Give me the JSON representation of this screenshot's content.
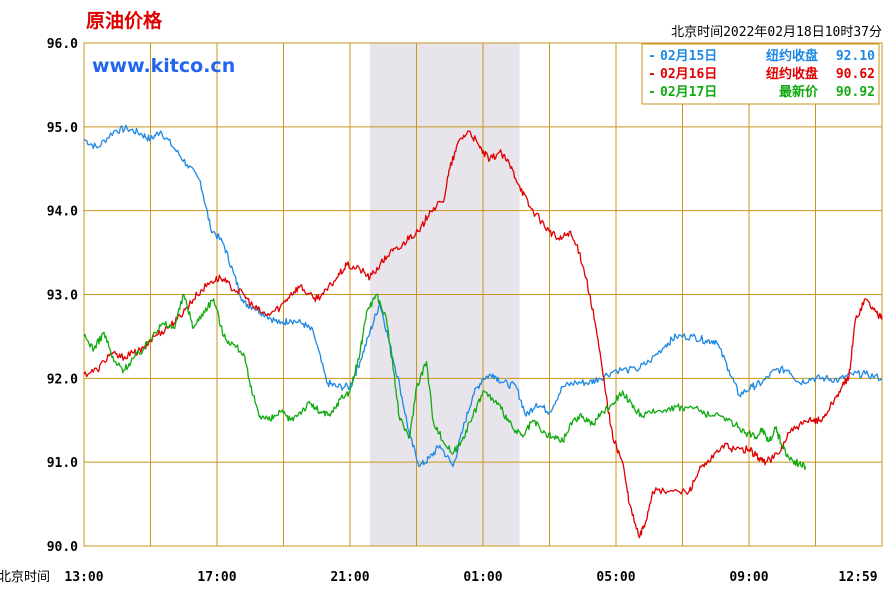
{
  "chart_data": {
    "type": "line",
    "title": "原油价格",
    "watermark": "www.kitco.cn",
    "timestamp": "北京时间2022年02月18日10时37分",
    "x_axis_prefix": "北京时间",
    "x_ticks": [
      "13:00",
      "17:00",
      "21:00",
      "01:00",
      "05:00",
      "09:00",
      "12:59"
    ],
    "y_ticks": [
      "96.0",
      "95.0",
      "94.0",
      "93.0",
      "92.0",
      "91.0",
      "90.0"
    ],
    "ylim": [
      90.0,
      96.0
    ],
    "xlim_hours": [
      0,
      24
    ],
    "shaded_region_hours": [
      8.6,
      13.1
    ],
    "grid": true,
    "legend_position": "top-right",
    "colors": {
      "grid": "#c8961e",
      "shade": "#e8e4ec",
      "title": "#e00000",
      "watermark": "#2266ee"
    },
    "series": [
      {
        "name": "02月15日",
        "legend_label": "纽约收盘",
        "legend_value": "92.10",
        "color": "#1e88e5",
        "points": [
          [
            0,
            94.85
          ],
          [
            0.4,
            94.75
          ],
          [
            0.9,
            94.95
          ],
          [
            1.3,
            94.98
          ],
          [
            1.7,
            94.92
          ],
          [
            2.0,
            94.85
          ],
          [
            2.3,
            94.95
          ],
          [
            2.7,
            94.75
          ],
          [
            3.1,
            94.55
          ],
          [
            3.5,
            94.35
          ],
          [
            3.8,
            93.8
          ],
          [
            4.2,
            93.6
          ],
          [
            4.5,
            93.25
          ],
          [
            4.8,
            92.9
          ],
          [
            5.1,
            92.85
          ],
          [
            5.5,
            92.75
          ],
          [
            5.9,
            92.65
          ],
          [
            6.2,
            92.7
          ],
          [
            6.6,
            92.65
          ],
          [
            6.9,
            92.55
          ],
          [
            7.3,
            91.95
          ],
          [
            7.6,
            91.9
          ],
          [
            8.0,
            91.9
          ],
          [
            8.3,
            92.2
          ],
          [
            8.6,
            92.55
          ],
          [
            8.9,
            92.9
          ],
          [
            9.2,
            92.4
          ],
          [
            9.5,
            91.9
          ],
          [
            9.8,
            91.3
          ],
          [
            10.1,
            90.95
          ],
          [
            10.4,
            91.05
          ],
          [
            10.7,
            91.2
          ],
          [
            11.1,
            90.95
          ],
          [
            11.4,
            91.4
          ],
          [
            11.7,
            91.8
          ],
          [
            12.0,
            92.0
          ],
          [
            12.3,
            92.05
          ],
          [
            12.6,
            91.95
          ],
          [
            13.0,
            91.9
          ],
          [
            13.3,
            91.55
          ],
          [
            13.6,
            91.7
          ],
          [
            14.0,
            91.6
          ],
          [
            14.4,
            91.9
          ],
          [
            14.8,
            91.95
          ],
          [
            15.2,
            91.95
          ],
          [
            15.5,
            92.0
          ],
          [
            16.0,
            92.1
          ],
          [
            16.6,
            92.1
          ],
          [
            17.0,
            92.2
          ],
          [
            17.5,
            92.4
          ],
          [
            17.8,
            92.5
          ],
          [
            18.3,
            92.5
          ],
          [
            18.7,
            92.45
          ],
          [
            19.0,
            92.45
          ],
          [
            19.4,
            92.1
          ],
          [
            19.7,
            91.8
          ],
          [
            20.1,
            91.9
          ],
          [
            20.4,
            91.95
          ],
          [
            20.8,
            92.1
          ],
          [
            21.2,
            92.1
          ],
          [
            21.5,
            91.95
          ],
          [
            21.9,
            92.0
          ],
          [
            22.3,
            92.0
          ],
          [
            22.7,
            91.98
          ],
          [
            23.1,
            92.05
          ],
          [
            23.5,
            92.05
          ],
          [
            24.0,
            92.0
          ]
        ]
      },
      {
        "name": "02月16日",
        "legend_label": "纽约收盘",
        "legend_value": "90.62",
        "color": "#e00000",
        "points": [
          [
            0,
            92.05
          ],
          [
            0.4,
            92.1
          ],
          [
            0.8,
            92.3
          ],
          [
            1.1,
            92.25
          ],
          [
            1.5,
            92.3
          ],
          [
            1.8,
            92.35
          ],
          [
            2.1,
            92.5
          ],
          [
            2.5,
            92.6
          ],
          [
            2.8,
            92.7
          ],
          [
            3.1,
            92.85
          ],
          [
            3.4,
            93.0
          ],
          [
            3.8,
            93.15
          ],
          [
            4.1,
            93.2
          ],
          [
            4.4,
            93.1
          ],
          [
            4.8,
            93.0
          ],
          [
            5.1,
            92.85
          ],
          [
            5.5,
            92.75
          ],
          [
            5.9,
            92.85
          ],
          [
            6.2,
            93.0
          ],
          [
            6.5,
            93.1
          ],
          [
            6.9,
            92.95
          ],
          [
            7.2,
            93.0
          ],
          [
            7.6,
            93.2
          ],
          [
            7.9,
            93.35
          ],
          [
            8.3,
            93.3
          ],
          [
            8.6,
            93.2
          ],
          [
            8.9,
            93.35
          ],
          [
            9.2,
            93.5
          ],
          [
            9.5,
            93.55
          ],
          [
            9.8,
            93.7
          ],
          [
            10.1,
            93.75
          ],
          [
            10.4,
            94.0
          ],
          [
            10.8,
            94.1
          ],
          [
            11.0,
            94.5
          ],
          [
            11.3,
            94.85
          ],
          [
            11.6,
            94.95
          ],
          [
            11.9,
            94.75
          ],
          [
            12.2,
            94.6
          ],
          [
            12.5,
            94.7
          ],
          [
            12.8,
            94.55
          ],
          [
            13.1,
            94.3
          ],
          [
            13.4,
            94.05
          ],
          [
            13.7,
            93.9
          ],
          [
            14.0,
            93.75
          ],
          [
            14.3,
            93.65
          ],
          [
            14.6,
            93.75
          ],
          [
            14.9,
            93.5
          ],
          [
            15.1,
            93.2
          ],
          [
            15.4,
            92.6
          ],
          [
            15.7,
            91.8
          ],
          [
            15.9,
            91.3
          ],
          [
            16.2,
            91.0
          ],
          [
            16.4,
            90.5
          ],
          [
            16.7,
            90.1
          ],
          [
            16.9,
            90.3
          ],
          [
            17.1,
            90.65
          ],
          [
            17.6,
            90.65
          ],
          [
            18.2,
            90.65
          ],
          [
            18.5,
            90.9
          ],
          [
            18.8,
            91.0
          ],
          [
            19.2,
            91.2
          ],
          [
            19.6,
            91.15
          ],
          [
            20.0,
            91.15
          ],
          [
            20.3,
            91.05
          ],
          [
            20.5,
            91.0
          ],
          [
            20.9,
            91.1
          ],
          [
            21.2,
            91.35
          ],
          [
            21.6,
            91.45
          ],
          [
            21.9,
            91.5
          ],
          [
            22.2,
            91.5
          ],
          [
            22.5,
            91.7
          ],
          [
            22.8,
            91.9
          ],
          [
            23.0,
            92.0
          ],
          [
            23.2,
            92.7
          ],
          [
            23.5,
            92.95
          ],
          [
            23.8,
            92.8
          ],
          [
            24.0,
            92.7
          ]
        ]
      },
      {
        "name": "02月17日",
        "legend_label": "最新价",
        "legend_value": "90.92",
        "color": "#11aa11",
        "points": [
          [
            0,
            92.5
          ],
          [
            0.3,
            92.35
          ],
          [
            0.6,
            92.55
          ],
          [
            0.9,
            92.2
          ],
          [
            1.2,
            92.1
          ],
          [
            1.5,
            92.25
          ],
          [
            1.8,
            92.35
          ],
          [
            2.1,
            92.55
          ],
          [
            2.4,
            92.65
          ],
          [
            2.7,
            92.6
          ],
          [
            3.0,
            93.0
          ],
          [
            3.3,
            92.6
          ],
          [
            3.6,
            92.8
          ],
          [
            3.9,
            92.95
          ],
          [
            4.2,
            92.5
          ],
          [
            4.5,
            92.4
          ],
          [
            4.8,
            92.3
          ],
          [
            5.0,
            91.9
          ],
          [
            5.3,
            91.55
          ],
          [
            5.6,
            91.5
          ],
          [
            5.9,
            91.6
          ],
          [
            6.2,
            91.5
          ],
          [
            6.5,
            91.6
          ],
          [
            6.8,
            91.7
          ],
          [
            7.1,
            91.6
          ],
          [
            7.4,
            91.55
          ],
          [
            7.7,
            91.75
          ],
          [
            8.0,
            91.85
          ],
          [
            8.3,
            92.3
          ],
          [
            8.5,
            92.8
          ],
          [
            8.8,
            93.0
          ],
          [
            9.1,
            92.7
          ],
          [
            9.3,
            92.1
          ],
          [
            9.5,
            91.5
          ],
          [
            9.8,
            91.3
          ],
          [
            10.0,
            91.9
          ],
          [
            10.3,
            92.2
          ],
          [
            10.5,
            91.5
          ],
          [
            10.8,
            91.25
          ],
          [
            11.1,
            91.1
          ],
          [
            11.4,
            91.3
          ],
          [
            11.7,
            91.55
          ],
          [
            12.0,
            91.85
          ],
          [
            12.3,
            91.75
          ],
          [
            12.6,
            91.6
          ],
          [
            12.9,
            91.4
          ],
          [
            13.2,
            91.3
          ],
          [
            13.5,
            91.5
          ],
          [
            13.8,
            91.35
          ],
          [
            14.1,
            91.3
          ],
          [
            14.4,
            91.25
          ],
          [
            14.7,
            91.5
          ],
          [
            15.0,
            91.55
          ],
          [
            15.3,
            91.45
          ],
          [
            15.6,
            91.6
          ],
          [
            15.9,
            91.7
          ],
          [
            16.2,
            91.85
          ],
          [
            16.5,
            91.65
          ],
          [
            16.8,
            91.55
          ],
          [
            17.2,
            91.6
          ],
          [
            17.6,
            91.65
          ],
          [
            18.0,
            91.65
          ],
          [
            18.4,
            91.65
          ],
          [
            18.8,
            91.55
          ],
          [
            19.2,
            91.55
          ],
          [
            19.6,
            91.45
          ],
          [
            19.9,
            91.35
          ],
          [
            20.2,
            91.3
          ],
          [
            20.4,
            91.4
          ],
          [
            20.6,
            91.25
          ],
          [
            20.8,
            91.4
          ],
          [
            21.0,
            91.2
          ],
          [
            21.2,
            91.05
          ],
          [
            21.5,
            90.98
          ],
          [
            21.7,
            90.95
          ]
        ]
      }
    ]
  }
}
